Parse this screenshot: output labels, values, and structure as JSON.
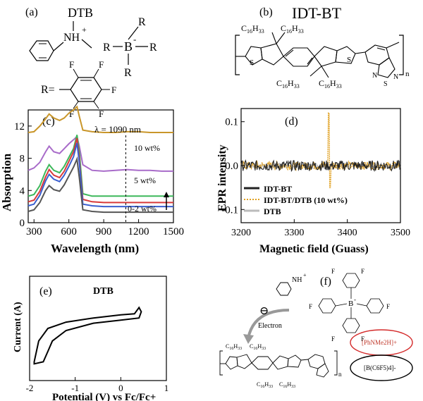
{
  "panel_labels": {
    "a": "(a)",
    "b": "(b)",
    "c": "(c)",
    "d": "(d)",
    "e": "(e)",
    "f": "(f)"
  },
  "structures": {
    "dtb_title": "DTB",
    "idtbt_title": "IDT-BT",
    "nh_plus": "NH",
    "plus_sign": "+",
    "boron": "B",
    "minus_sign": "-",
    "r": "R",
    "f": "F",
    "r_eq": "R=",
    "c16": "C",
    "c16_sub1": "16",
    "c16_h": "H",
    "c16_sub2": "33",
    "s": "S",
    "n": "N",
    "subscript_n": "n"
  },
  "panel_f": {
    "electron_label": "Electron",
    "minus_symbol": "⊖",
    "cation_label": "[PhNMe2H]+",
    "anion_label": "[B(C6F5)4]-",
    "colors": {
      "cation_ring": "#d42a2a",
      "anion_ring": "#000000",
      "cation_text": "#c0392b"
    }
  },
  "chart_data": [
    {
      "type": "line",
      "title": "",
      "xlabel": "Wavelength (nm)",
      "ylabel": "Absorption",
      "xlim": [
        250,
        1500
      ],
      "ylim": [
        0,
        14
      ],
      "xticks": [
        300,
        600,
        900,
        1200,
        1500
      ],
      "yticks": [
        0,
        4,
        8,
        12
      ],
      "annotations": [
        "λ = 1090 nm",
        "10 wt%",
        "5 wt%",
        "0-2 wt%"
      ],
      "marker_line_x": 1090,
      "x": [
        250,
        300,
        350,
        400,
        430,
        470,
        520,
        560,
        600,
        640,
        670,
        690,
        720,
        800,
        900,
        1000,
        1100,
        1200,
        1300,
        1400,
        1500
      ],
      "series": [
        {
          "name": "10 wt%",
          "color": "#c9962a",
          "values": [
            11.2,
            11.3,
            12.0,
            12.9,
            13.5,
            13.0,
            12.7,
            13.0,
            13.6,
            14.0,
            14.4,
            13.2,
            11.5,
            11.3,
            11.2,
            11.2,
            11.3,
            11.3,
            11.2,
            11.2,
            11.2
          ]
        },
        {
          "name": "5 wt%",
          "color": "#a86bc9",
          "values": [
            6.5,
            6.8,
            7.5,
            8.8,
            9.5,
            8.8,
            8.6,
            9.2,
            9.8,
            10.3,
            10.7,
            9.5,
            7.2,
            6.5,
            6.4,
            6.5,
            6.6,
            6.5,
            6.5,
            6.4,
            6.4
          ]
        },
        {
          "name": "green",
          "color": "#3cb85a",
          "values": [
            3.3,
            3.5,
            4.6,
            6.4,
            7.2,
            6.5,
            6.2,
            7.0,
            8.1,
            9.2,
            10.9,
            8.8,
            3.6,
            3.3,
            3.3,
            3.3,
            3.3,
            3.3,
            3.3,
            3.3,
            3.3
          ]
        },
        {
          "name": "red",
          "color": "#d83a3a",
          "values": [
            2.6,
            2.8,
            3.9,
            5.7,
            6.6,
            5.9,
            5.6,
            6.4,
            7.6,
            8.8,
            10.5,
            8.0,
            2.9,
            2.6,
            2.5,
            2.5,
            2.5,
            2.5,
            2.5,
            2.5,
            2.5
          ]
        },
        {
          "name": "blue",
          "color": "#3a5fcf",
          "values": [
            2.1,
            2.3,
            3.4,
            5.2,
            6.0,
            5.4,
            5.1,
            5.9,
            7.0,
            8.2,
            9.9,
            7.5,
            2.3,
            2.1,
            2.0,
            2.0,
            2.0,
            2.0,
            2.0,
            2.0,
            2.0
          ]
        },
        {
          "name": "dark",
          "color": "#555555",
          "values": [
            1.4,
            1.6,
            2.5,
            4.0,
            4.6,
            4.1,
            3.9,
            4.7,
            5.8,
            6.9,
            7.9,
            5.6,
            1.6,
            1.4,
            1.3,
            1.3,
            1.3,
            1.3,
            1.3,
            1.3,
            1.3
          ]
        }
      ]
    },
    {
      "type": "line",
      "title": "",
      "xlabel": "Magnetic field (Guass)",
      "ylabel": "EPR intensity",
      "xlim": [
        3200,
        3500
      ],
      "ylim": [
        -0.13,
        0.13
      ],
      "xticks": [
        3200,
        3300,
        3400,
        3500
      ],
      "yticks": [
        -0.1,
        0.0,
        0.1
      ],
      "legend": "bottom-left",
      "series": [
        {
          "name": "IDT-BT",
          "color": "#222222"
        },
        {
          "name": "IDT-BT/DTB (10 wt%)",
          "color": "#e0a020"
        },
        {
          "name": "DTB",
          "color": "#bbbbbb"
        }
      ],
      "peak": {
        "x": 3366,
        "min": -0.05,
        "max": 0.12
      }
    },
    {
      "type": "line",
      "title": "DTB",
      "xlabel": "Potential (V) vs Fc/Fc+",
      "ylabel": "Current (A)",
      "xlim": [
        -2,
        1
      ],
      "xticks": [
        -2,
        -1,
        0,
        1
      ],
      "cv_loop": [
        [
          -1.9,
          0.18
        ],
        [
          -1.8,
          0.38
        ],
        [
          -1.6,
          0.5
        ],
        [
          -1.2,
          0.56
        ],
        [
          -0.6,
          0.6
        ],
        [
          0.0,
          0.63
        ],
        [
          0.3,
          0.64
        ],
        [
          0.4,
          0.7
        ],
        [
          0.45,
          0.66
        ],
        [
          0.4,
          0.6
        ],
        [
          0.0,
          0.58
        ],
        [
          -0.6,
          0.55
        ],
        [
          -1.2,
          0.48
        ],
        [
          -1.5,
          0.38
        ],
        [
          -1.6,
          0.28
        ],
        [
          -1.7,
          0.18
        ],
        [
          -1.9,
          0.16
        ]
      ]
    }
  ]
}
